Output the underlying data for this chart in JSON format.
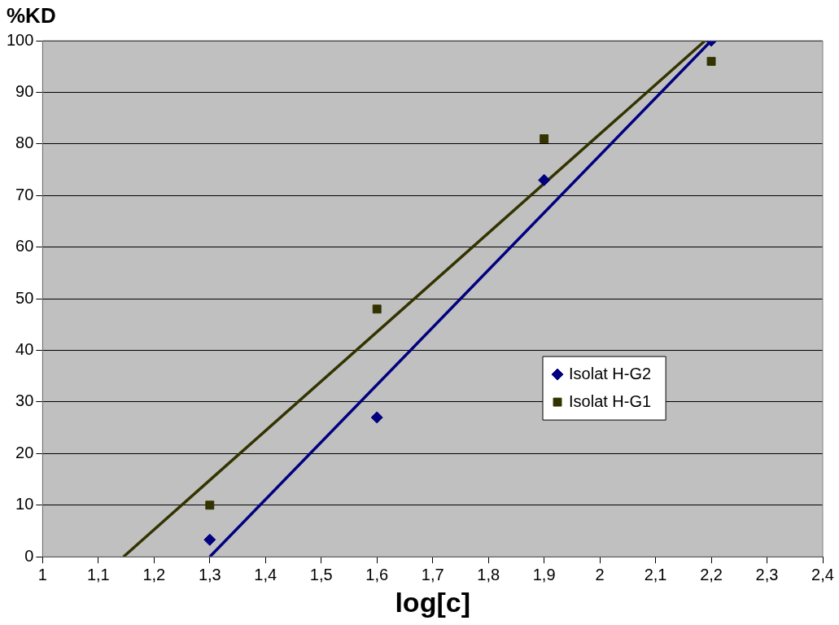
{
  "chart_data": {
    "type": "scatter",
    "xlabel": "log[c]",
    "ylabel": "%KD",
    "xlim": [
      1,
      2.4
    ],
    "xticks": [
      1,
      {
        "value": 1.1,
        "label": "1,1"
      },
      {
        "value": 1.2,
        "label": "1,2"
      },
      {
        "value": 1.3,
        "label": "1,3"
      },
      {
        "value": 1.4,
        "label": "1,4"
      },
      {
        "value": 1.5,
        "label": "1,5"
      },
      {
        "value": 1.6,
        "label": "1,6"
      },
      {
        "value": 1.7,
        "label": "1,7"
      },
      {
        "value": 1.8,
        "label": "1,8"
      },
      {
        "value": 1.9,
        "label": "1,9"
      },
      2,
      {
        "value": 2.1,
        "label": "2,1"
      },
      {
        "value": 2.2,
        "label": "2,2"
      },
      {
        "value": 2.3,
        "label": "2,3"
      },
      {
        "value": 2.4,
        "label": "2,4"
      }
    ],
    "ylim": [
      0,
      100
    ],
    "yticks": [
      0,
      10,
      20,
      30,
      40,
      50,
      60,
      70,
      80,
      90,
      100
    ],
    "grid": "y",
    "legend": "right",
    "series": [
      {
        "name": "Isolat H-G2",
        "type": "scatter",
        "marker": "diamond",
        "color": "#000080",
        "x": [
          1.3,
          1.6,
          1.9,
          2.2
        ],
        "values": [
          3.3,
          27,
          73,
          100
        ]
      },
      {
        "name": "Isolat H-G1",
        "type": "scatter",
        "marker": "square",
        "color": "#333300",
        "x": [
          1.3,
          1.6,
          1.9,
          2.2
        ],
        "values": [
          10,
          48,
          81,
          96
        ]
      },
      {
        "type": "line",
        "marker": "none",
        "color": "#000080",
        "x": [
          1.3,
          2.2
        ],
        "values": [
          0,
          100
        ]
      },
      {
        "type": "line",
        "marker": "none",
        "color": "#333300",
        "x": [
          1.145,
          2.189
        ],
        "values": [
          0,
          100
        ]
      }
    ]
  }
}
